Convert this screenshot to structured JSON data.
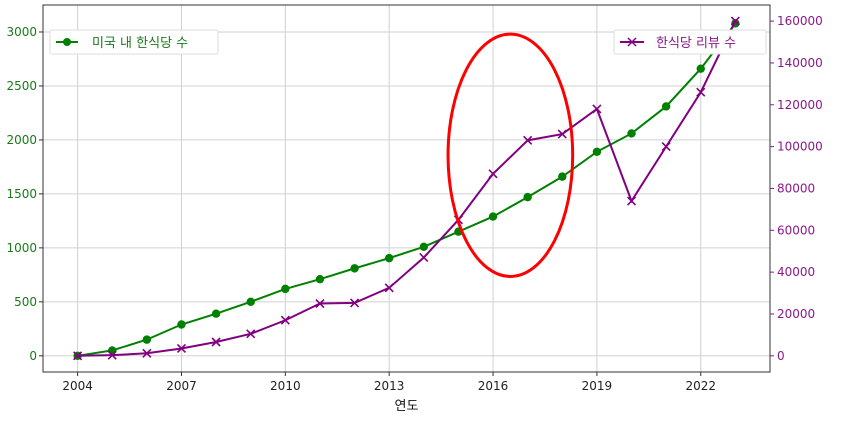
{
  "chart_data": {
    "type": "line",
    "x": [
      2004,
      2005,
      2006,
      2007,
      2008,
      2009,
      2010,
      2011,
      2012,
      2013,
      2014,
      2015,
      2016,
      2017,
      2018,
      2019,
      2020,
      2021,
      2022,
      2023
    ],
    "xlabel": "연도",
    "xticks": [
      2004,
      2007,
      2010,
      2013,
      2016,
      2019,
      2022
    ],
    "xlim": [
      2003.0,
      2024.0
    ],
    "grid": true,
    "series": [
      {
        "name": "미국 내 한식당 수",
        "axis": "left",
        "color": "#008000",
        "marker": "circle",
        "values": [
          0,
          50,
          150,
          290,
          390,
          500,
          620,
          710,
          810,
          905,
          1010,
          1150,
          1290,
          1470,
          1660,
          1890,
          2060,
          2310,
          2660,
          3080
        ]
      },
      {
        "name": "한식당 리뷰 수",
        "axis": "right",
        "color": "#800080",
        "marker": "x",
        "values": [
          0,
          300,
          1200,
          3500,
          6600,
          10500,
          17000,
          25000,
          25300,
          32500,
          47000,
          65000,
          87000,
          103000,
          106000,
          118000,
          74000,
          100000,
          126000,
          160000
        ]
      }
    ],
    "y_left": {
      "ticks": [
        0,
        500,
        1000,
        1500,
        2000,
        2500,
        3000
      ],
      "lim": [
        -150,
        3250
      ],
      "color": "#008000"
    },
    "y_right": {
      "ticks": [
        0,
        20000,
        40000,
        60000,
        80000,
        100000,
        120000,
        140000,
        160000
      ],
      "lim": [
        -7740,
        167700
      ],
      "color": "#800080"
    },
    "legend_left_position": "top-left",
    "legend_right_position": "top-right",
    "annotation": {
      "shape": "ellipse",
      "color": "#ff0000",
      "x_range": [
        2014.7,
        2018.3
      ],
      "y_left_range": [
        735,
        2980
      ]
    }
  }
}
